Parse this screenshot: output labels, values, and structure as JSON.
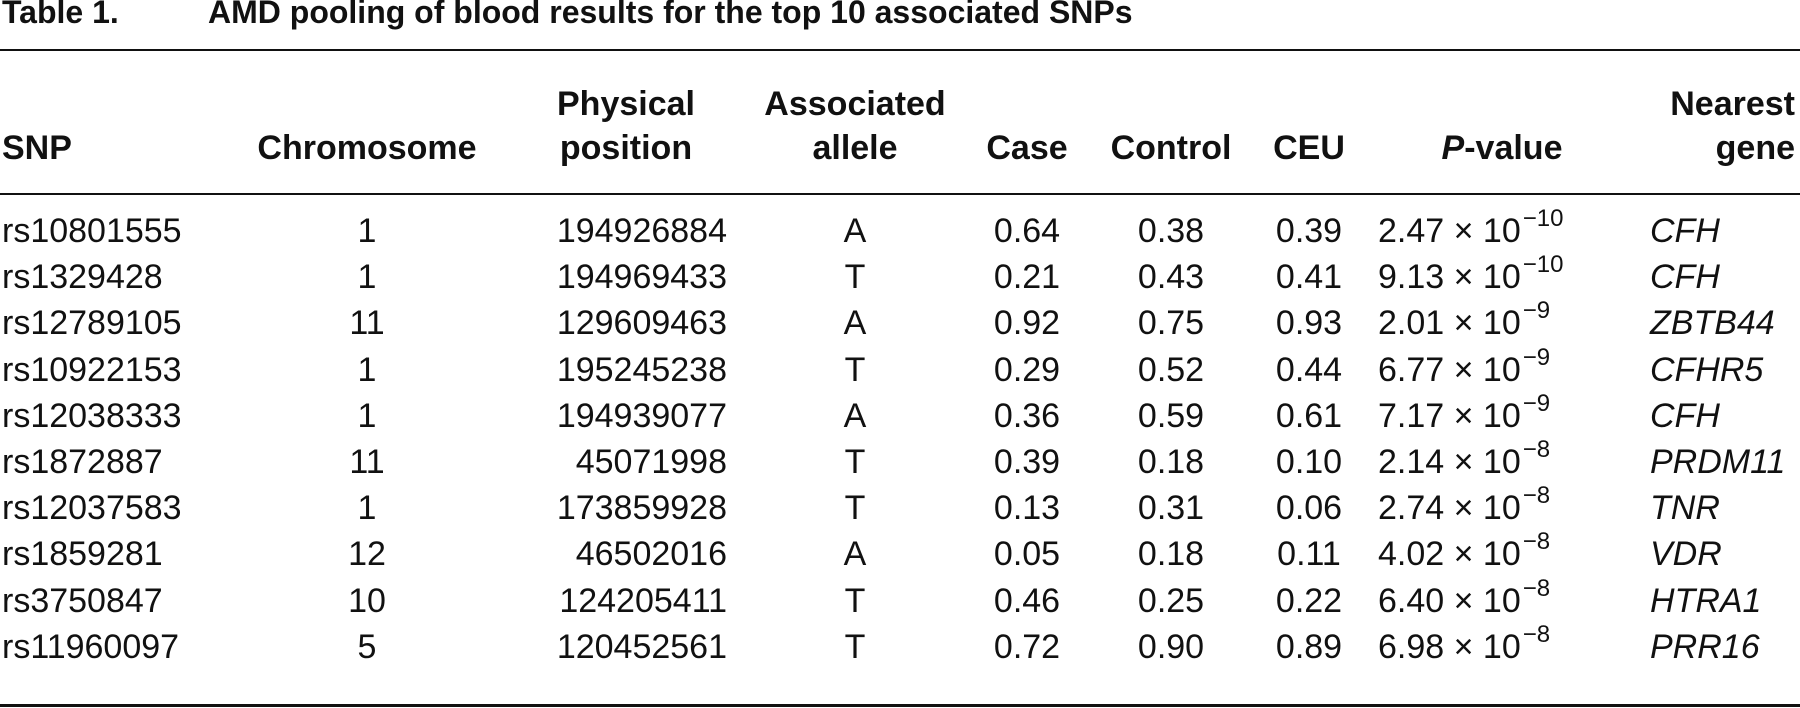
{
  "title": {
    "label": "Table 1.",
    "text": "AMD pooling of blood results for the top 10 associated SNPs"
  },
  "table": {
    "header": [
      [
        "SNP"
      ],
      [
        "Chromosome"
      ],
      [
        "Physical",
        "position"
      ],
      [
        "Associated",
        "allele"
      ],
      [
        "Case"
      ],
      [
        "Control"
      ],
      [
        "CEU"
      ],
      [
        {
          "italic": "P",
          "rest": "-value"
        }
      ],
      [
        "Nearest",
        "gene"
      ]
    ],
    "rows": [
      [
        "rs10801555",
        "1",
        "194926884",
        "A",
        "0.64",
        "0.38",
        "0.39",
        {
          "base": "2.47 × 10",
          "exp": "−10"
        },
        "CFH"
      ],
      [
        "rs1329428",
        "1",
        "194969433",
        "T",
        "0.21",
        "0.43",
        "0.41",
        {
          "base": "9.13 × 10",
          "exp": "−10"
        },
        "CFH"
      ],
      [
        "rs12789105",
        "11",
        "129609463",
        "A",
        "0.92",
        "0.75",
        "0.93",
        {
          "base": "2.01 × 10",
          "exp": "−9"
        },
        "ZBTB44"
      ],
      [
        "rs10922153",
        "1",
        "195245238",
        "T",
        "0.29",
        "0.52",
        "0.44",
        {
          "base": "6.77 × 10",
          "exp": "−9"
        },
        "CFHR5"
      ],
      [
        "rs12038333",
        "1",
        "194939077",
        "A",
        "0.36",
        "0.59",
        "0.61",
        {
          "base": "7.17 × 10",
          "exp": "−9"
        },
        "CFH"
      ],
      [
        "rs1872887",
        "11",
        "45071998",
        "T",
        "0.39",
        "0.18",
        "0.10",
        {
          "base": "2.14 × 10",
          "exp": "−8"
        },
        "PRDM11"
      ],
      [
        "rs12037583",
        "1",
        "173859928",
        "T",
        "0.13",
        "0.31",
        "0.06",
        {
          "base": "2.74 × 10",
          "exp": "−8"
        },
        "TNR"
      ],
      [
        "rs1859281",
        "12",
        "46502016",
        "A",
        "0.05",
        "0.18",
        "0.11",
        {
          "base": "4.02 × 10",
          "exp": "−8"
        },
        "VDR"
      ],
      [
        "rs3750847",
        "10",
        "124205411",
        "T",
        "0.46",
        "0.25",
        "0.22",
        {
          "base": "6.40 × 10",
          "exp": "−8"
        },
        "HTRA1"
      ],
      [
        "rs11960097",
        "5",
        "120452561",
        "T",
        "0.72",
        "0.90",
        "0.89",
        {
          "base": "6.98 × 10",
          "exp": "−8"
        },
        "PRR16"
      ]
    ]
  }
}
